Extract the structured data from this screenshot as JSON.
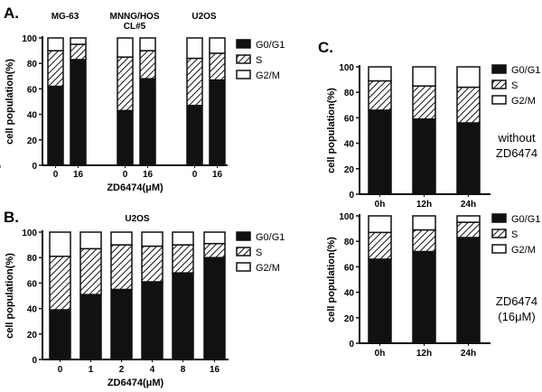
{
  "chart_data": [
    {
      "type": "bar",
      "stacked": true,
      "panel_label": "A.",
      "groups": [
        "MG-63",
        "MNNG/HOS\nCL#5",
        "U2OS"
      ],
      "categories": [
        "0",
        "16",
        "0",
        "16",
        "0",
        "16"
      ],
      "xlabel": "ZD6474(μM)",
      "ylabel": "cell population(%)",
      "ylim": [
        0,
        100
      ],
      "yticks": [
        0,
        20,
        40,
        60,
        80,
        100
      ],
      "series": [
        {
          "name": "G0/G1",
          "values": [
            62,
            83,
            43,
            68,
            47,
            67
          ]
        },
        {
          "name": "S",
          "values": [
            28,
            12,
            42,
            22,
            37,
            21
          ]
        },
        {
          "name": "G2/M",
          "values": [
            10,
            5,
            15,
            10,
            16,
            12
          ]
        }
      ],
      "legend": "right"
    },
    {
      "type": "bar",
      "stacked": true,
      "panel_label": "B.",
      "title": "U2OS",
      "categories": [
        "0",
        "1",
        "2",
        "4",
        "8",
        "16"
      ],
      "xlabel": "ZD6474(μM)",
      "ylabel": "cell population(%)",
      "ylim": [
        0,
        100
      ],
      "yticks": [
        0,
        20,
        40,
        60,
        80,
        100
      ],
      "series": [
        {
          "name": "G0/G1",
          "values": [
            39,
            51,
            55,
            61,
            68,
            80
          ]
        },
        {
          "name": "S",
          "values": [
            42,
            36,
            35,
            28,
            22,
            11
          ]
        },
        {
          "name": "G2/M",
          "values": [
            19,
            13,
            10,
            11,
            10,
            9
          ]
        }
      ],
      "legend": "right"
    },
    {
      "type": "bar",
      "stacked": true,
      "panel_label": "C.",
      "annotation": "without\nZD6474",
      "categories": [
        "0h",
        "12h",
        "24h"
      ],
      "ylabel": "cell population(%)",
      "ylim": [
        0,
        100
      ],
      "yticks": [
        0,
        20,
        40,
        60,
        80,
        100
      ],
      "series": [
        {
          "name": "G0/G1",
          "values": [
            66,
            59,
            56
          ]
        },
        {
          "name": "S",
          "values": [
            23,
            26,
            28
          ]
        },
        {
          "name": "G2/M",
          "values": [
            11,
            15,
            16
          ]
        }
      ],
      "legend": "right"
    },
    {
      "type": "bar",
      "stacked": true,
      "annotation": "ZD6474\n(16μM)",
      "categories": [
        "0h",
        "12h",
        "24h"
      ],
      "ylabel": "cell population(%)",
      "ylim": [
        0,
        100
      ],
      "yticks": [
        0,
        20,
        40,
        60,
        80,
        100
      ],
      "series": [
        {
          "name": "G0/G1",
          "values": [
            66,
            72,
            83
          ]
        },
        {
          "name": "S",
          "values": [
            21,
            17,
            12
          ]
        },
        {
          "name": "G2/M",
          "values": [
            13,
            11,
            5
          ]
        }
      ],
      "legend": "right"
    }
  ],
  "colors": {
    "G0/G1": "#111111",
    "S": "hatch",
    "G2/M": "#ffffff"
  }
}
